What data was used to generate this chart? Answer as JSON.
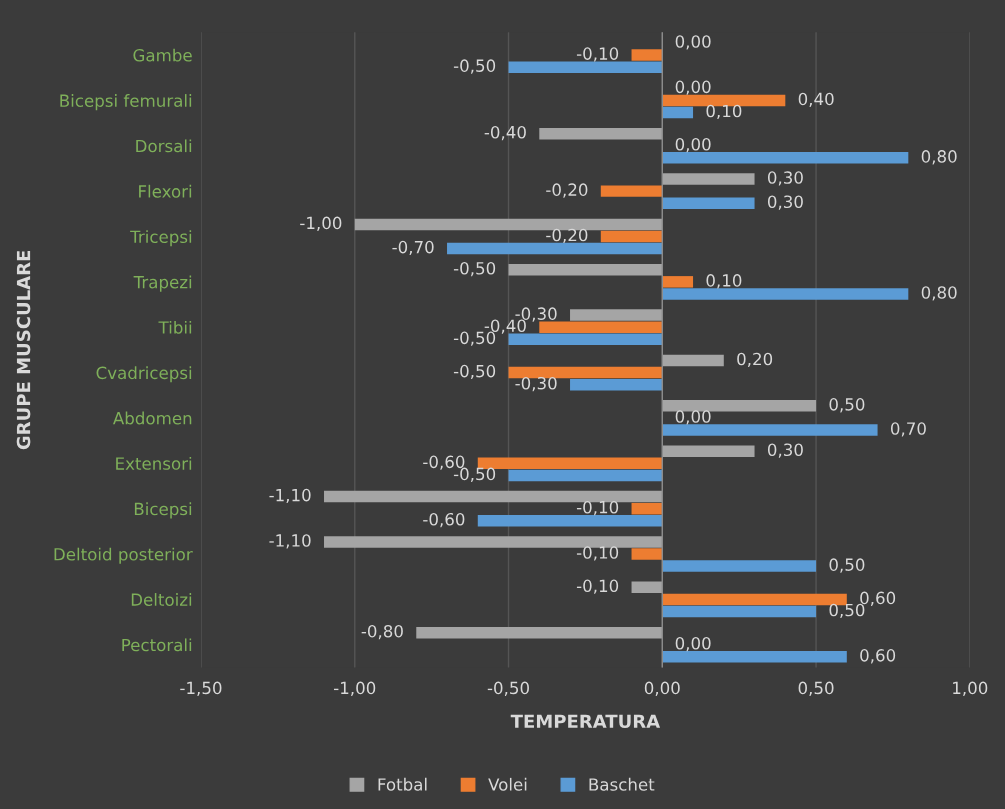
{
  "chart_data": {
    "type": "bar",
    "orientation": "horizontal",
    "xlabel": "TEMPERATURA",
    "ylabel": "GRUPE MUSCULARE",
    "categories": [
      "Gambe",
      "Bicepsi femurali",
      "Dorsali",
      "Flexori",
      "Tricepsi",
      "Trapezi",
      "Tibii",
      "Cvadricepsi",
      "Abdomen",
      "Extensori",
      "Bicepsi",
      "Deltoid posterior",
      "Deltoizi",
      "Pectorali"
    ],
    "series": [
      {
        "name": "Fotbal",
        "color": "#a5a5a5",
        "values": [
          0.0,
          0.0,
          -0.4,
          0.3,
          -1.0,
          -0.5,
          -0.3,
          0.2,
          0.5,
          0.3,
          -1.1,
          -1.1,
          -0.1,
          -0.8
        ],
        "value_labels": [
          "0,00",
          "0,00",
          "-0,40",
          "0,30",
          "-1,00",
          "-0,50",
          "-0,30",
          "0,20",
          "0,50",
          "0,30",
          "-1,10",
          "-1,10",
          "-0,10",
          "-0,80"
        ]
      },
      {
        "name": "Volei",
        "color": "#ed7d31",
        "values": [
          -0.1,
          0.4,
          0.0,
          -0.2,
          -0.2,
          0.1,
          -0.4,
          -0.5,
          0.0,
          -0.6,
          -0.1,
          -0.1,
          0.6,
          0.0
        ],
        "value_labels": [
          "-0,10",
          "0,40",
          "0,00",
          "-0,20",
          "-0,20",
          "0,10",
          "-0,40",
          "-0,50",
          "0,00",
          "-0,60",
          "-0,10",
          "-0,10",
          "0,60",
          "0,00"
        ]
      },
      {
        "name": "Baschet",
        "color": "#5b9bd5",
        "values": [
          -0.5,
          0.1,
          0.8,
          0.3,
          -0.7,
          0.8,
          -0.5,
          -0.3,
          0.7,
          -0.5,
          -0.6,
          0.5,
          0.5,
          0.6
        ],
        "value_labels": [
          "-0,50",
          "0,10",
          "0,80",
          "0,30",
          "-0,70",
          "0,80",
          "-0,50",
          "-0,30",
          "0,70",
          "-0,50",
          "-0,60",
          "0,50",
          "0,50",
          "0,60"
        ]
      }
    ],
    "xlim": [
      -1.5,
      1.0
    ],
    "xticks": [
      {
        "value": -1.5,
        "label": "-1,50"
      },
      {
        "value": -1.0,
        "label": "-1,00"
      },
      {
        "value": -0.5,
        "label": "-0,50"
      },
      {
        "value": 0,
        "label": "0,00"
      },
      {
        "value": 0.5,
        "label": "0,50"
      },
      {
        "value": 1.0,
        "label": "1,00"
      }
    ],
    "grid": "x",
    "legend": "bottom"
  }
}
